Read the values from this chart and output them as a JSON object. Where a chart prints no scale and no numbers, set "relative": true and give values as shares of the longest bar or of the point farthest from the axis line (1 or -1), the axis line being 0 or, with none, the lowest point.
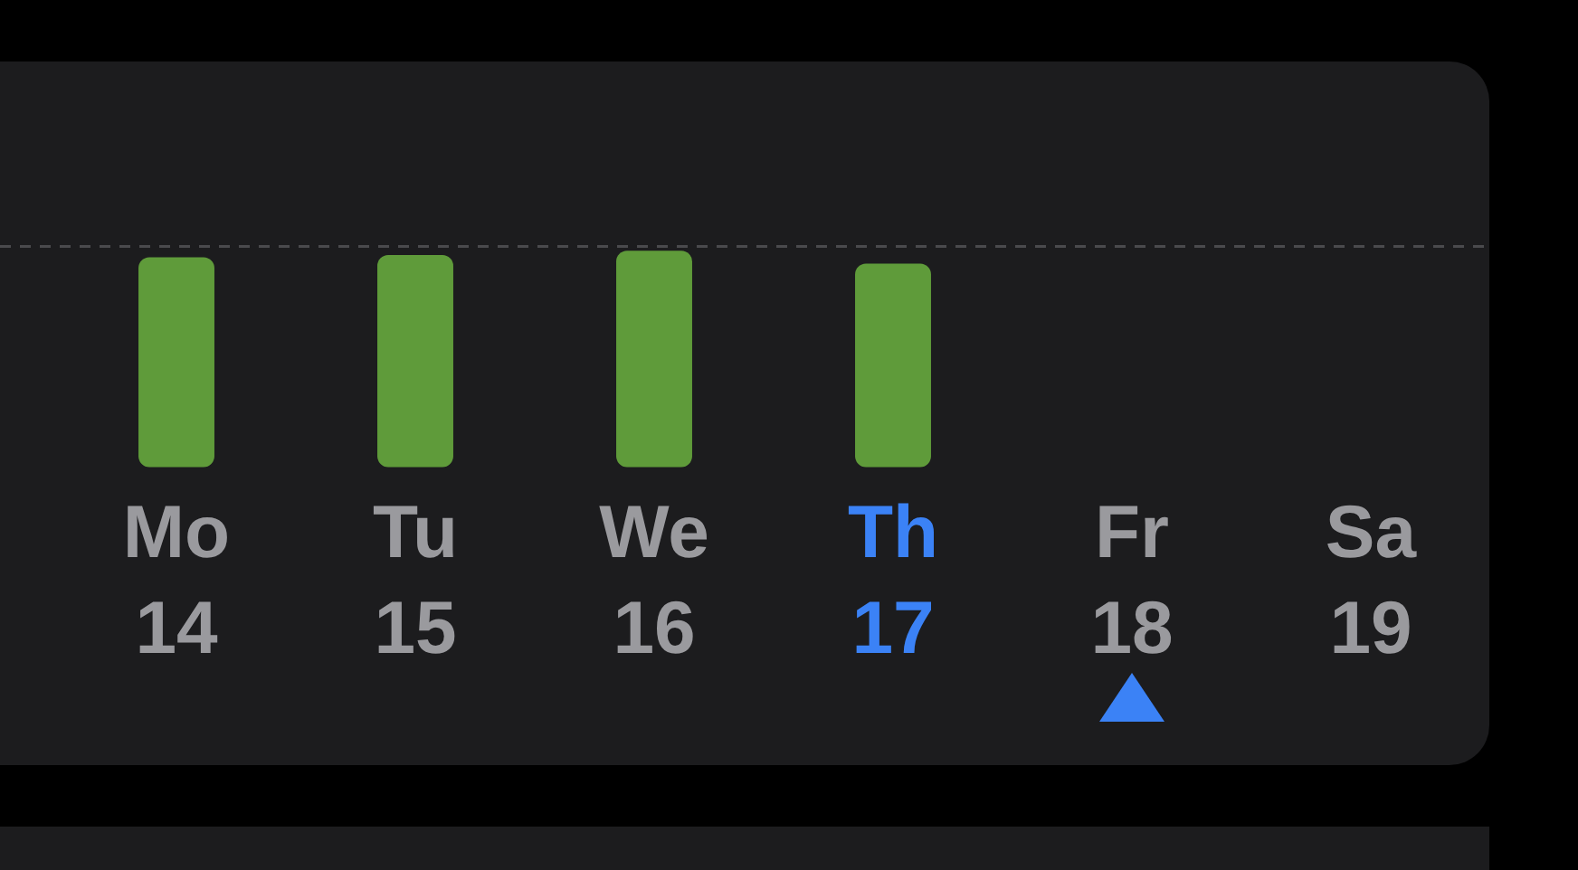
{
  "chart_data": {
    "type": "bar",
    "relative": true,
    "categories": [
      "Mo\n14",
      "Tu\n15",
      "We\n16",
      "Th\n17",
      "Fr\n18",
      "Sa\n19"
    ],
    "values": [
      0.97,
      0.98,
      1,
      0.94,
      null,
      null
    ],
    "color": "#5f9b3a",
    "ref_lines": [
      {
        "axis": "y",
        "value": 1.02,
        "color": "#4a4a4d",
        "line_style": "dashed"
      }
    ]
  }
}
